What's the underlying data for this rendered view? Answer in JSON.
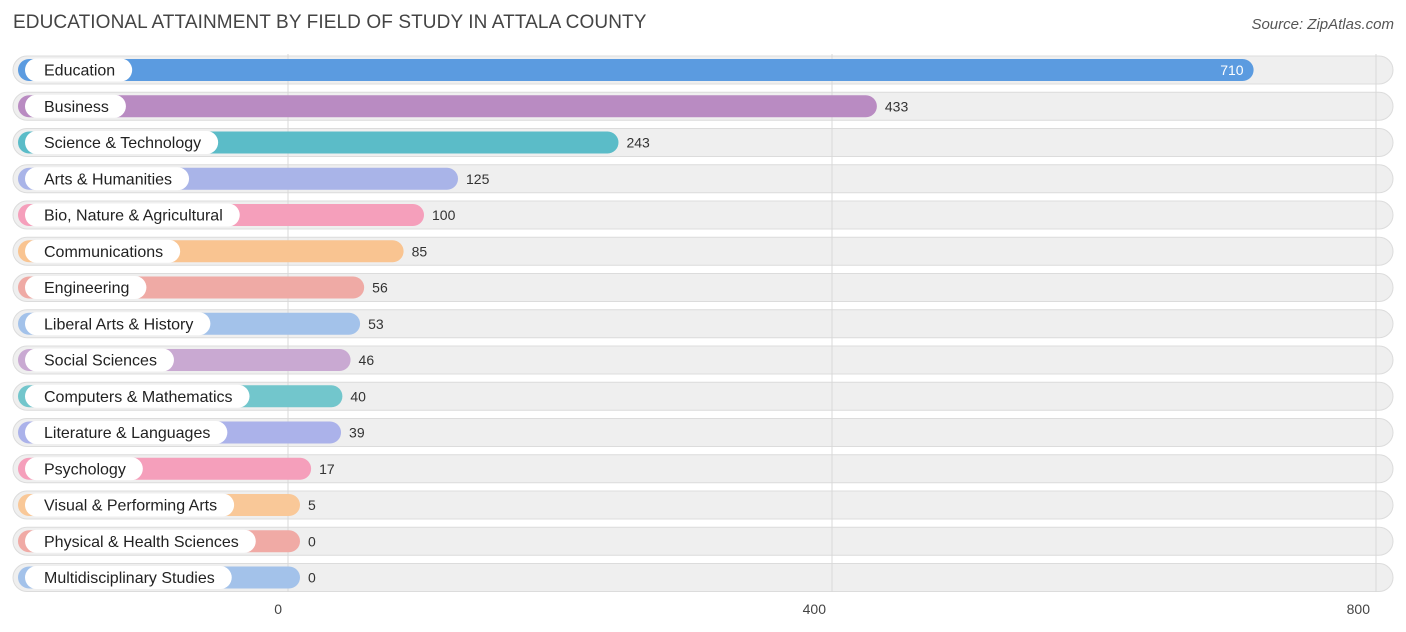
{
  "header": {
    "title": "EDUCATIONAL ATTAINMENT BY FIELD OF STUDY IN ATTALA COUNTY",
    "source": "Source: ZipAtlas.com"
  },
  "chart_data": {
    "type": "bar",
    "orientation": "horizontal",
    "title": "EDUCATIONAL ATTAINMENT BY FIELD OF STUDY IN ATTALA COUNTY",
    "xlabel": "",
    "ylabel": "",
    "xlim": [
      0,
      800
    ],
    "ticks": [
      0,
      400,
      800
    ],
    "grid": true,
    "legend": "none",
    "categories": [
      "Education",
      "Business",
      "Science & Technology",
      "Arts & Humanities",
      "Bio, Nature & Agricultural",
      "Communications",
      "Engineering",
      "Liberal Arts & History",
      "Social Sciences",
      "Computers & Mathematics",
      "Literature & Languages",
      "Psychology",
      "Visual & Performing Arts",
      "Physical & Health Sciences",
      "Multidisciplinary Studies"
    ],
    "values": [
      710,
      433,
      243,
      125,
      100,
      85,
      56,
      53,
      46,
      40,
      39,
      17,
      5,
      0,
      0
    ],
    "colors": [
      "#5b9be0",
      "#b98bc2",
      "#5bbcc8",
      "#a9b4e8",
      "#f59fbb",
      "#f9c491",
      "#efaaa5",
      "#a3c2ea",
      "#c9a9d2",
      "#72c6cc",
      "#abb2ea",
      "#f59fbb",
      "#f9c898",
      "#f0aaa5",
      "#a3c2ea"
    ]
  }
}
